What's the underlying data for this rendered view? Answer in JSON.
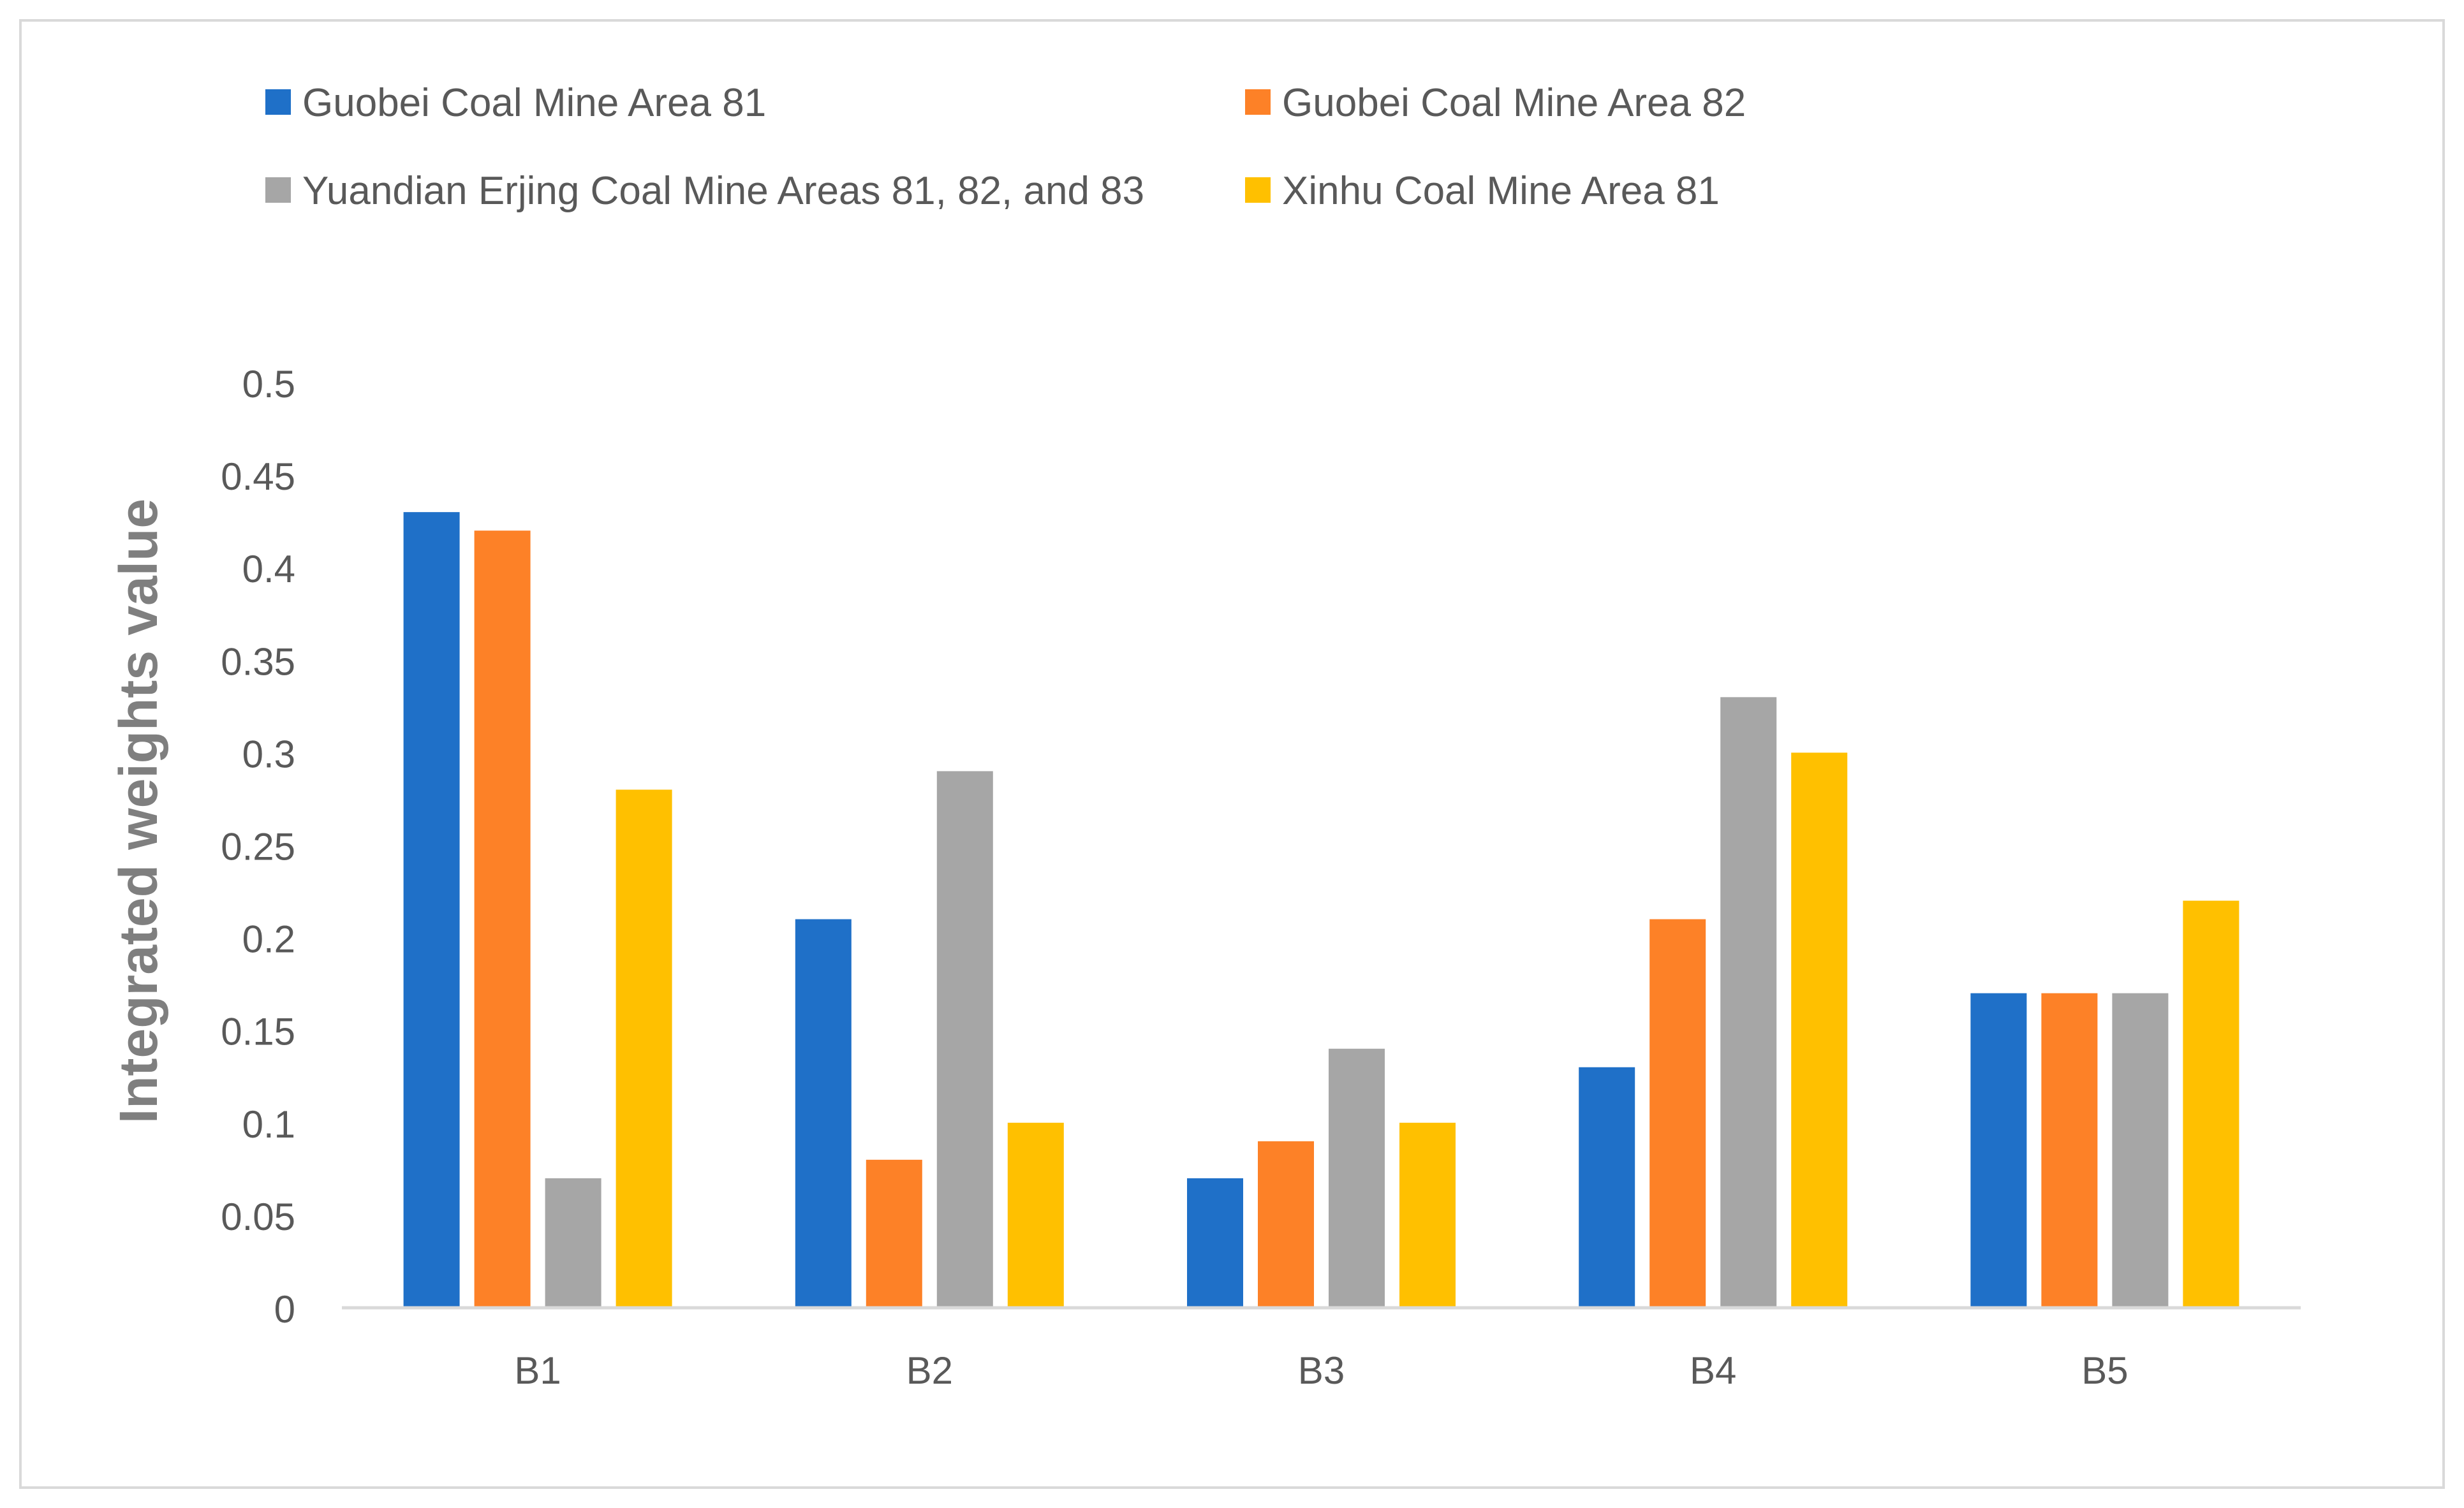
{
  "chart_data": {
    "type": "bar",
    "title": "",
    "xlabel": "",
    "ylabel": "Integrated weights value",
    "ylim": [
      0,
      0.5
    ],
    "yticks": [
      0,
      0.05,
      0.1,
      0.15,
      0.2,
      0.25,
      0.3,
      0.35,
      0.4,
      0.45,
      0.5
    ],
    "ytick_labels": [
      "0",
      "0.05",
      "0.1",
      "0.15",
      "0.2",
      "0.25",
      "0.3",
      "0.35",
      "0.4",
      "0.45",
      "0.5"
    ],
    "categories": [
      "B1",
      "B2",
      "B3",
      "B4",
      "B5"
    ],
    "legend_position": "top",
    "grid": false,
    "series": [
      {
        "name": "Guobei Coal Mine Area 81",
        "color": "#1f70c8",
        "values": [
          0.43,
          0.21,
          0.07,
          0.13,
          0.17
        ]
      },
      {
        "name": "Guobei Coal Mine Area 82",
        "color": "#fd8127",
        "values": [
          0.42,
          0.08,
          0.09,
          0.21,
          0.17
        ]
      },
      {
        "name": "Yuandian Erjing Coal Mine Areas 81, 82, and 83",
        "color": "#a6a6a6",
        "values": [
          0.07,
          0.29,
          0.14,
          0.33,
          0.17
        ]
      },
      {
        "name": "Xinhu Coal Mine Area 81",
        "color": "#ffc000",
        "values": [
          0.28,
          0.1,
          0.1,
          0.3,
          0.22
        ]
      }
    ]
  }
}
